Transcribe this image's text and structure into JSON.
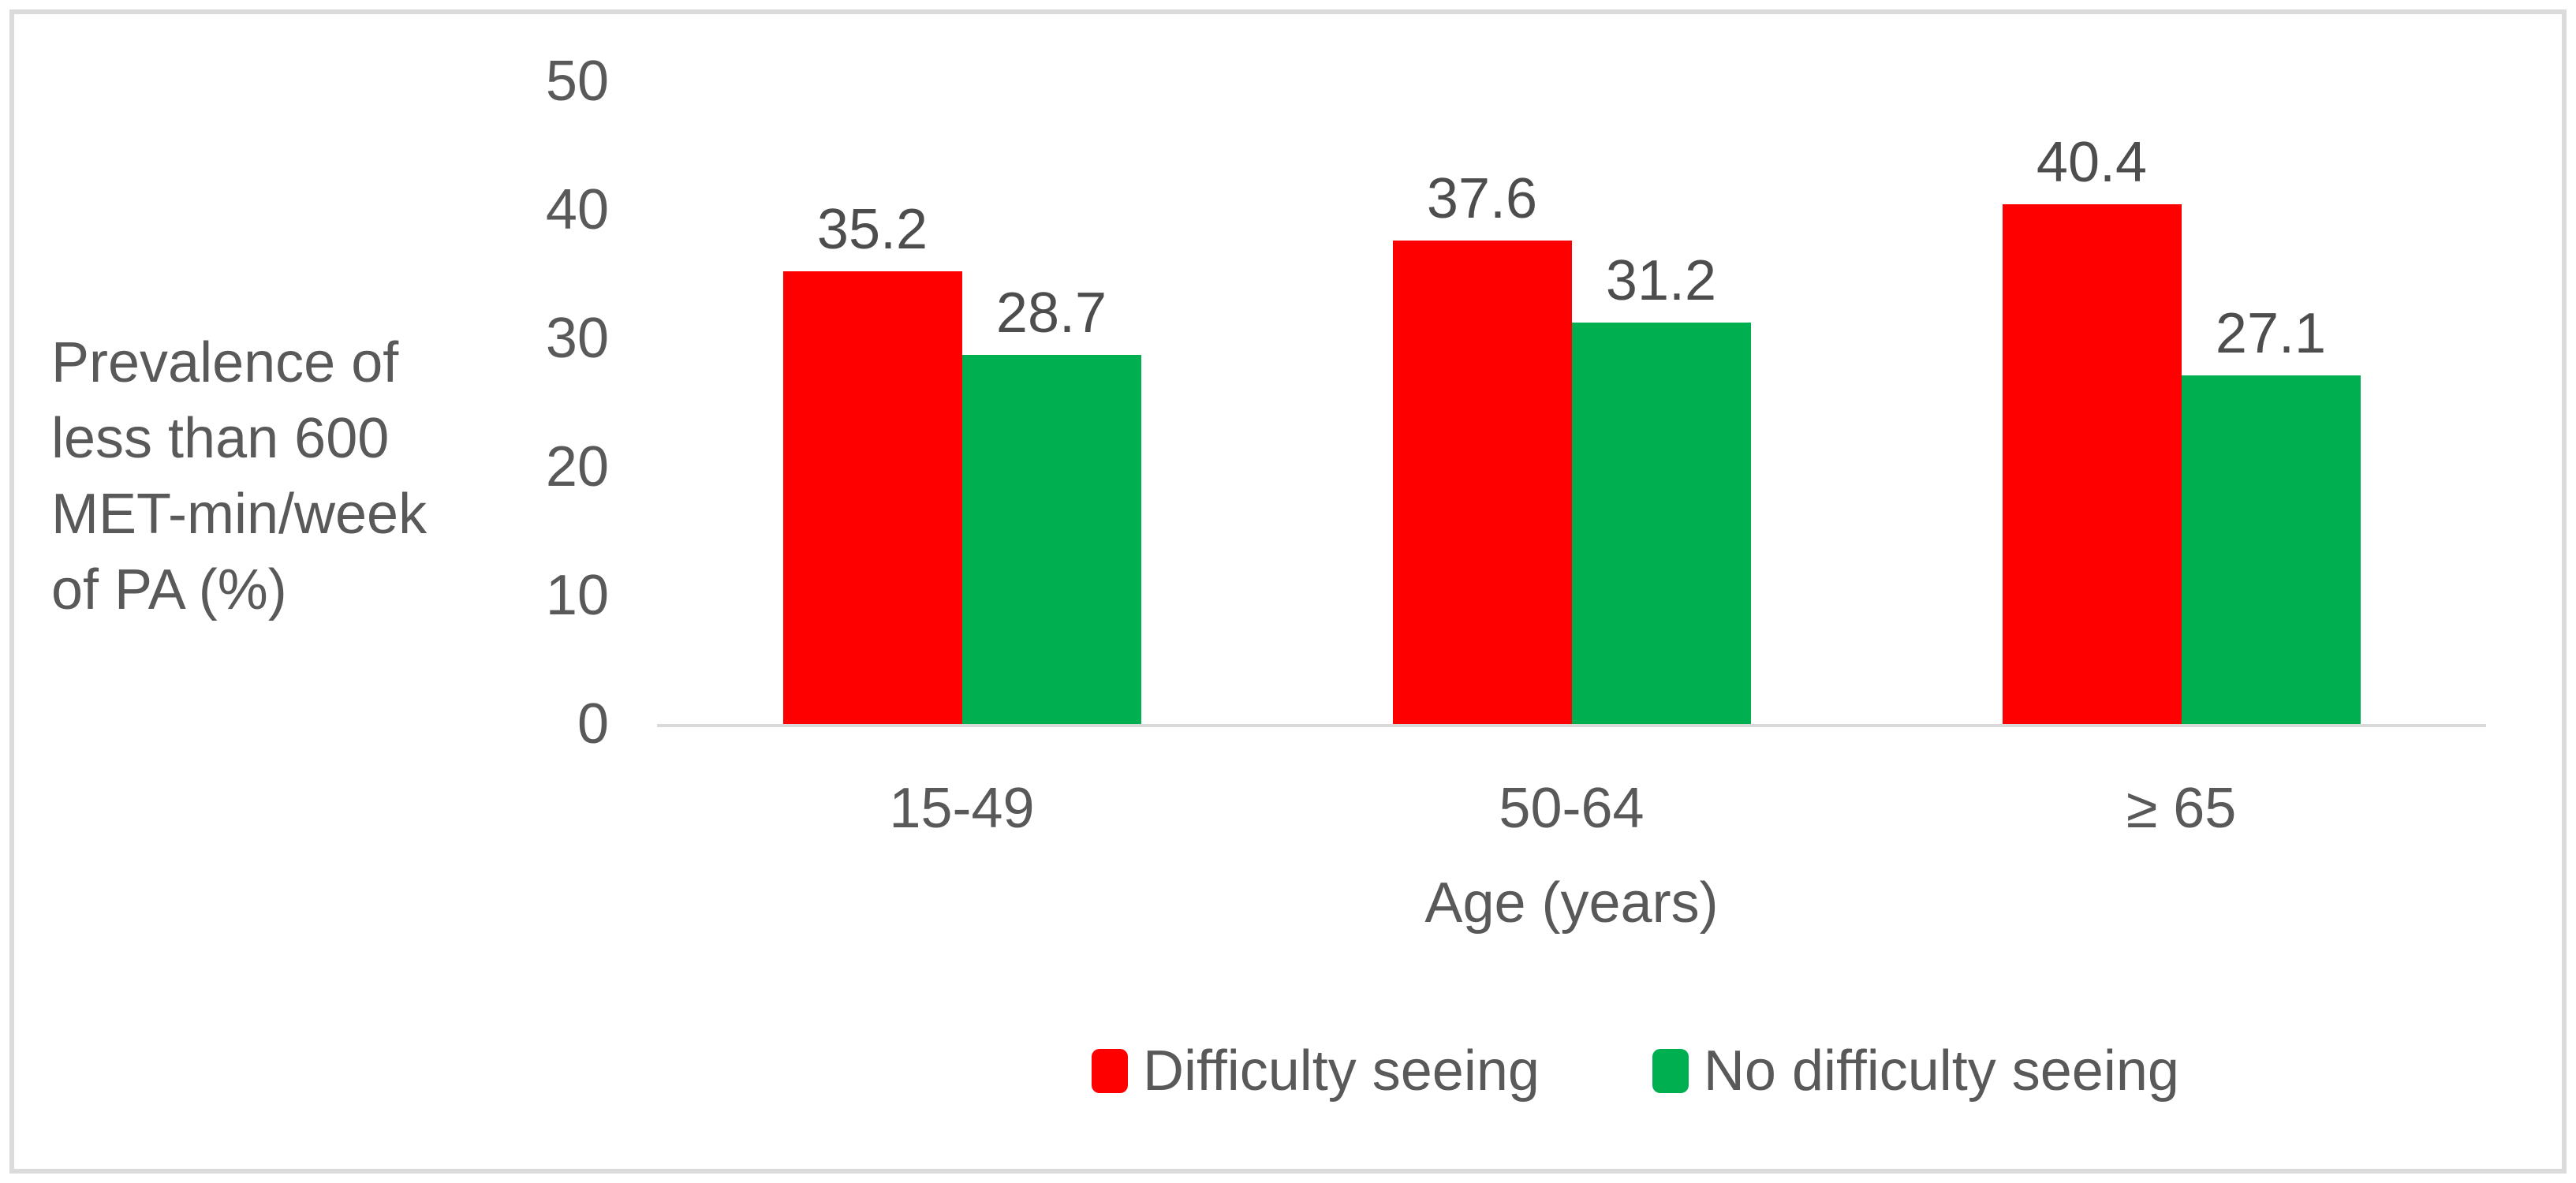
{
  "figure": {
    "y_axis_title": "Prevalence of\nless than 600\nMET-min/week\nof PA (%)",
    "x_axis_title": "Age (years)"
  },
  "chart_data": {
    "type": "bar",
    "categories": [
      "15-49",
      "50-64",
      "≥ 65"
    ],
    "series": [
      {
        "name": "Difficulty seeing",
        "color": "#ff0000",
        "values": [
          35.2,
          37.6,
          40.4
        ]
      },
      {
        "name": "No difficulty seeing",
        "color": "#00b050",
        "values": [
          28.7,
          31.2,
          27.1
        ]
      }
    ],
    "title": "",
    "xlabel": "Age (years)",
    "ylabel": "Prevalence of less than 600 MET-min/week of PA (%)",
    "ylim": [
      0,
      50
    ],
    "yticks": [
      0,
      10,
      20,
      30,
      40,
      50
    ],
    "grid": false,
    "legend_position": "bottom",
    "data_labels": "outside-end"
  },
  "colors": {
    "tick_text": "#595959",
    "data_label_text": "#4d4d4d",
    "axis_line": "#d9d9d9",
    "frame_border": "#dbdbdb",
    "background": "#ffffff"
  }
}
